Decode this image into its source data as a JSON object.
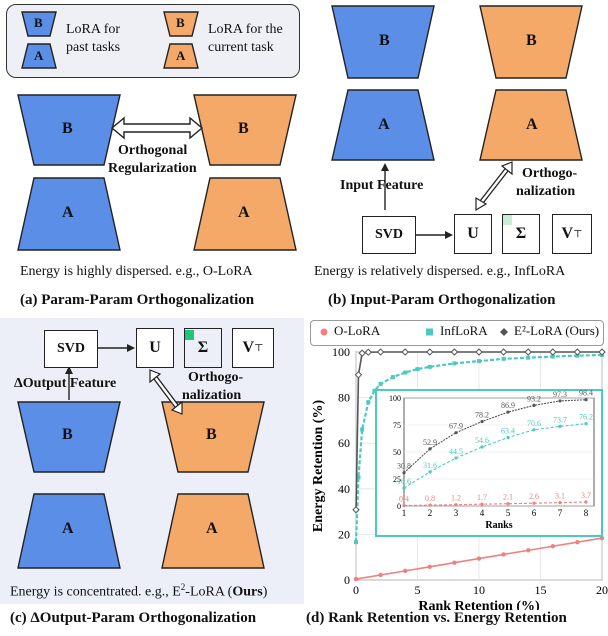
{
  "legend": {
    "past_b": "B",
    "past_a": "A",
    "past_label": [
      "LoRA for",
      "past tasks"
    ],
    "cur_b": "B",
    "cur_a": "A",
    "cur_label": [
      "LoRA for the",
      "current task"
    ]
  },
  "panel_a": {
    "b_left": "B",
    "a_left": "A",
    "b_right": "B",
    "a_right": "A",
    "reg_label": [
      "Orthogonal",
      "Regularization"
    ],
    "note": "Energy is highly dispersed. e.g., O-LoRA",
    "caption": "(a) Param-Param Orthogonalization"
  },
  "panel_b": {
    "b_left": "B",
    "a_left": "A",
    "b_right": "B",
    "a_right": "A",
    "input_feature": "Input Feature",
    "svd": "SVD",
    "u": "U",
    "sigma": "Σ",
    "v": "V",
    "ortho_label": [
      "Orthogo-",
      "nalization"
    ],
    "note": "Energy is relatively dispersed. e.g., InfLoRA",
    "caption": "(b) Input-Param Orthogonalization"
  },
  "panel_c": {
    "svd": "SVD",
    "u": "U",
    "sigma": "Σ",
    "v": "V",
    "output_feature": "ΔOutput Feature",
    "ortho_label": [
      "Orthogo-",
      "nalization"
    ],
    "b_left": "B",
    "a_left": "A",
    "b_right": "B",
    "a_right": "A",
    "note_prefix": "Energy is concentrated. e.g., E",
    "note_sup": "2",
    "note_mid": "-LoRA (",
    "note_bold": "Ours",
    "note_end": ")",
    "caption": "(c) ΔOutput-Param Orthogonalization"
  },
  "panel_d": {
    "caption": "(d) Rank Retention vs. Energy Retention",
    "legend": [
      "O-LoRA",
      "InfLoRA",
      "E²-LoRA (Ours)"
    ]
  },
  "colors": {
    "blue": "#5b8ee6",
    "orange": "#f5a968",
    "legend_bg": "#eef0f6",
    "panel_c_bg": "#eceff7"
  },
  "chart_data": {
    "type": "line",
    "xlabel": "Rank Retention (%)",
    "ylabel": "Energy Retention (%)",
    "xlim": [
      0,
      20
    ],
    "ylim": [
      0,
      100
    ],
    "xticks": [
      0,
      5,
      10,
      15,
      20
    ],
    "yticks": [
      0,
      20,
      40,
      60,
      80,
      100
    ],
    "series": [
      {
        "name": "O-LoRA",
        "color": "#f08080",
        "x": [
          0,
          2,
          4,
          6,
          8,
          10,
          12,
          14,
          16,
          18,
          20
        ],
        "y": [
          0.4,
          2.2,
          4.0,
          5.8,
          7.6,
          9.4,
          11.2,
          13.0,
          14.8,
          16.6,
          18.4
        ]
      },
      {
        "name": "InfLoRA",
        "color": "#4cc9c0",
        "x": [
          0,
          0.2,
          0.5,
          1,
          1.5,
          2,
          3,
          4,
          5,
          6,
          8,
          10,
          12,
          14,
          16,
          18,
          20
        ],
        "y": [
          16.6,
          45,
          66,
          78,
          83,
          86,
          89,
          91,
          92.5,
          93.5,
          95,
          96,
          97,
          97.5,
          98,
          98.4,
          98.7
        ]
      },
      {
        "name": "E²-LoRA (Ours)",
        "color": "#555555",
        "x": [
          0,
          0.2,
          0.5,
          1,
          2,
          4,
          6,
          8,
          10,
          12,
          14,
          16,
          18,
          20
        ],
        "y": [
          30.8,
          90,
          99.5,
          99.9,
          100,
          100,
          100,
          100,
          100,
          100,
          100,
          100,
          100,
          100
        ]
      }
    ],
    "inset": {
      "xlabel": "Ranks",
      "xticks": [
        1,
        2,
        3,
        4,
        5,
        6,
        7,
        8
      ],
      "yticks": [
        0,
        25,
        50,
        75,
        100
      ],
      "ylim": [
        0,
        100
      ],
      "series": [
        {
          "name": "O-LoRA",
          "color": "#f08080",
          "x": [
            1,
            2,
            3,
            4,
            5,
            6,
            7,
            8
          ],
          "y": [
            0.4,
            0.8,
            1.2,
            1.7,
            2.1,
            2.6,
            3.1,
            3.7
          ],
          "labels": [
            "0.4",
            "0.8",
            "1.2",
            "1.7",
            "2.1",
            "2.6",
            "3.1",
            "3.7"
          ]
        },
        {
          "name": "InfLoRA",
          "color": "#4cc9c0",
          "x": [
            1,
            2,
            3,
            4,
            5,
            6,
            7,
            8
          ],
          "y": [
            16.6,
            31.6,
            44.5,
            54.6,
            63.4,
            70.6,
            73.7,
            76.2
          ],
          "labels": [
            "16.6",
            "31.6",
            "44.5",
            "54.6",
            "63.4",
            "70.6",
            "73.7",
            "76.2"
          ]
        },
        {
          "name": "E²-LoRA (Ours)",
          "color": "#555555",
          "x": [
            1,
            2,
            3,
            4,
            5,
            6,
            7,
            8
          ],
          "y": [
            30.8,
            52.9,
            67.9,
            78.2,
            86.9,
            93.2,
            97.3,
            98.4
          ],
          "labels": [
            "30.8",
            "52.9",
            "67.9",
            "78.2",
            "86.9",
            "93.2",
            "97.3",
            "98.4"
          ]
        }
      ]
    }
  }
}
